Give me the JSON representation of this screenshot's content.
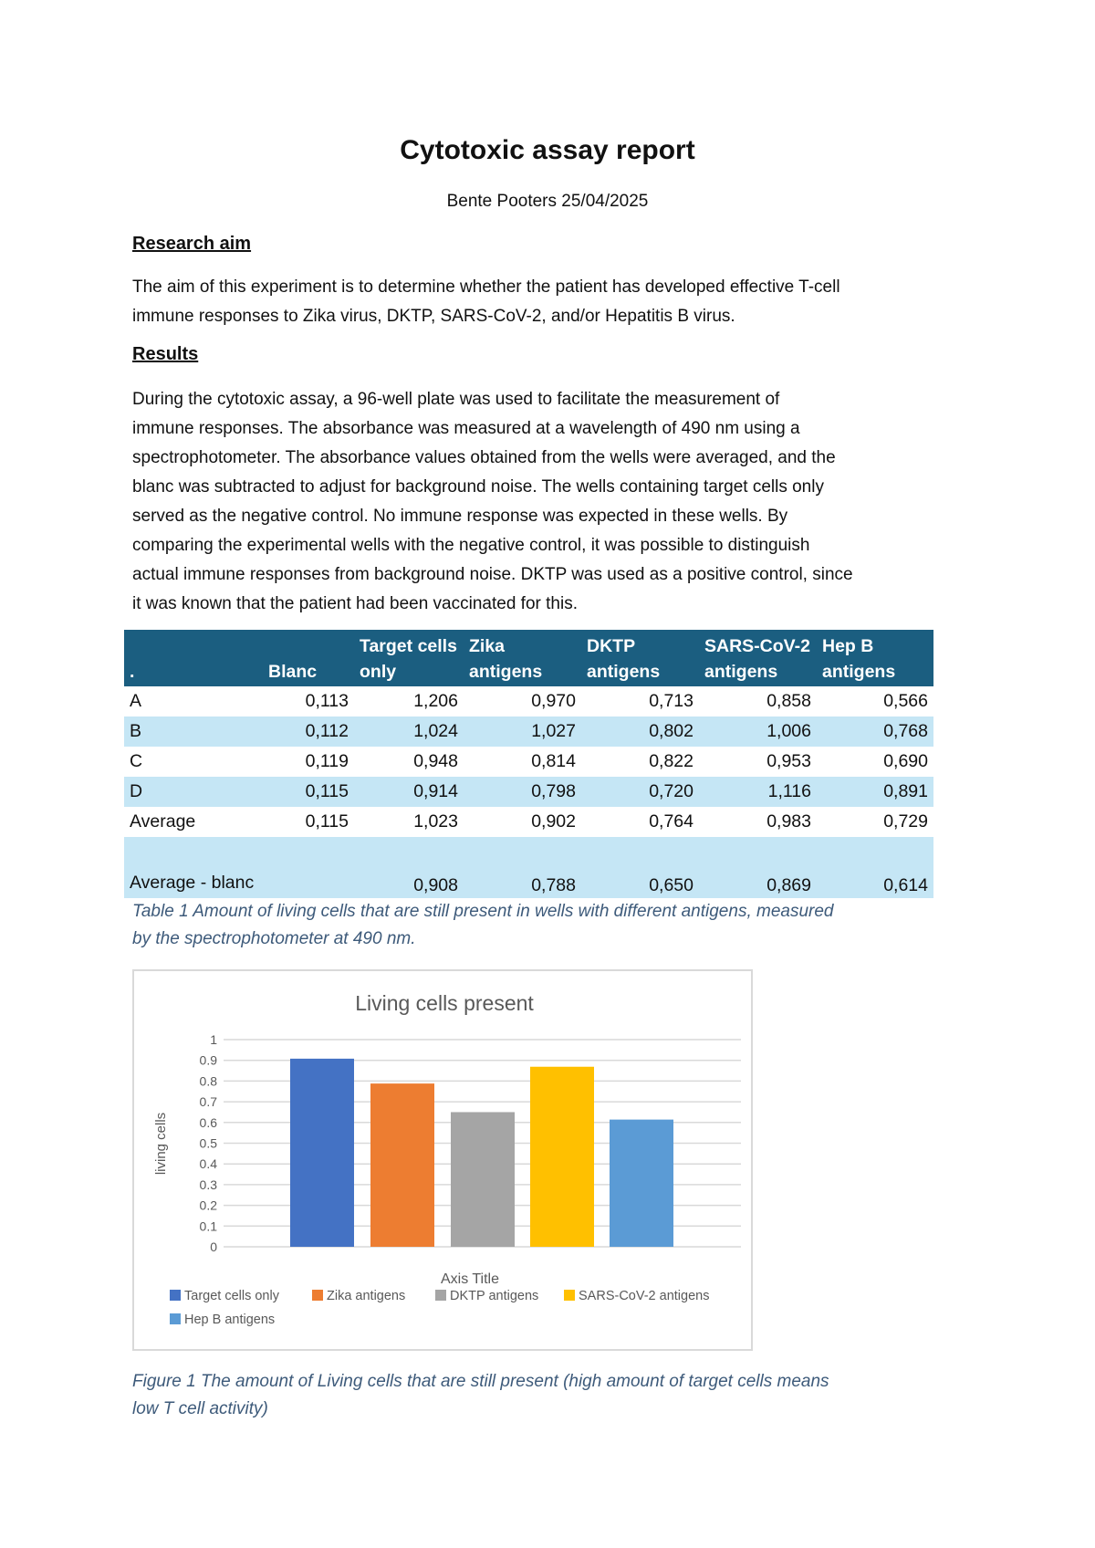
{
  "title": "Cytotoxic assay report",
  "author_line": "Bente Pooters 25/04/2025",
  "research_aim": {
    "heading": "Research aim",
    "lines": [
      "The aim of this experiment is to determine whether the patient has developed effective T-cell",
      "immune responses to Zika virus, DKTP, SARS-CoV-2, and/or Hepatitis B virus."
    ]
  },
  "results": {
    "heading": "Results",
    "lines": [
      "During the cytotoxic assay, a 96-well plate was used to facilitate the measurement of",
      "immune responses. The absorbance was measured at a wavelength of 490 nm using a",
      "spectrophotometer. The absorbance values obtained from the wells were averaged, and the",
      "blanc was subtracted to adjust for background noise. The wells containing target cells only",
      "served as the negative control. No immune response was expected in these wells. By",
      "comparing the experimental wells with the negative control, it was possible to distinguish",
      "actual immune responses from background noise. DKTP was used as a positive control, since",
      "it was known that the patient had been vaccinated for this."
    ]
  },
  "table": {
    "headers": [
      ".",
      "Blanc",
      "Target cells only",
      "Zika antigens",
      "DKTP antigens",
      "SARS-CoV-2 antigens",
      "Hep B antigens"
    ],
    "rows": [
      [
        "A",
        "0,113",
        "1,206",
        "0,970",
        "0,713",
        "0,858",
        "0,566"
      ],
      [
        "B",
        "0,112",
        "1,024",
        "1,027",
        "0,802",
        "1,006",
        "0,768"
      ],
      [
        "C",
        "0,119",
        "0,948",
        "0,814",
        "0,822",
        "0,953",
        "0,690"
      ],
      [
        "D",
        "0,115",
        "0,914",
        "0,798",
        "0,720",
        "1,116",
        "0,891"
      ],
      [
        "Average",
        "0,115",
        "1,023",
        "0,902",
        "0,764",
        "0,983",
        "0,729"
      ],
      [
        "Average - blanc",
        "",
        "0,908",
        "0,788",
        "0,650",
        "0,869",
        "0,614"
      ]
    ],
    "header_color": "#1b5e80",
    "stripe_color": "#c5e6f5",
    "caption_lines": [
      "Table 1 Amount of living cells that are still present in wells with different antigens, measured",
      "by the spectrophotometer at 490 nm."
    ]
  },
  "chart_data": {
    "type": "bar",
    "title": "Living cells present",
    "xlabel": "Axis Title",
    "ylabel": "living cells",
    "ylim": [
      0,
      1
    ],
    "yticks": [
      "0",
      "0.1",
      "0.2",
      "0.3",
      "0.4",
      "0.5",
      "0.6",
      "0.7",
      "0.8",
      "0.9",
      "1"
    ],
    "grid": true,
    "legend": "bottom",
    "series": [
      {
        "name": "Target cells only",
        "value": 0.908,
        "color": "#4472c4"
      },
      {
        "name": "Zika antigens",
        "value": 0.788,
        "color": "#ed7d31"
      },
      {
        "name": "DKTP antigens",
        "value": 0.65,
        "color": "#a5a5a5"
      },
      {
        "name": "SARS-CoV-2 antigens",
        "value": 0.869,
        "color": "#ffc000"
      },
      {
        "name": "Hep B antigens",
        "value": 0.614,
        "color": "#5b9bd5"
      }
    ]
  },
  "figure_caption_lines": [
    "Figure 1 The amount of Living cells that are still present (high amount of target cells means",
    "low T cell activity)"
  ]
}
